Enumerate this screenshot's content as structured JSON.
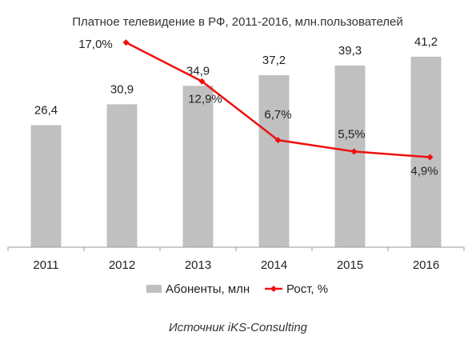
{
  "chart_data": {
    "type": "bar",
    "title": "Платное телевидение в РФ, 2011-2016, млн.пользователей",
    "categories": [
      "2011",
      "2012",
      "2013",
      "2014",
      "2015",
      "2016"
    ],
    "series": [
      {
        "name": "Абоненты, млн",
        "type": "bar",
        "color": "#c0c0c0",
        "values": [
          26.4,
          30.9,
          34.9,
          37.2,
          39.3,
          41.2
        ],
        "labels": [
          "26,4",
          "30,9",
          "34,9",
          "37,2",
          "39,3",
          "41,2"
        ]
      },
      {
        "name": "Рост, %",
        "type": "line",
        "axis": "secondary",
        "color": "#ee1111",
        "x": [
          "2012",
          "2013",
          "2014",
          "2015",
          "2016"
        ],
        "values": [
          17.0,
          12.9,
          6.7,
          5.5,
          4.9
        ],
        "labels": [
          "17,0%",
          "12,9%",
          "6,7%",
          "5,5%",
          "4,9%"
        ]
      }
    ],
    "ylim": [
      0,
      50
    ],
    "y2lim": [
      -4.6,
      19.8
    ],
    "grid": false,
    "legend_position": "bottom"
  },
  "source": "Источник iKS-Consulting"
}
